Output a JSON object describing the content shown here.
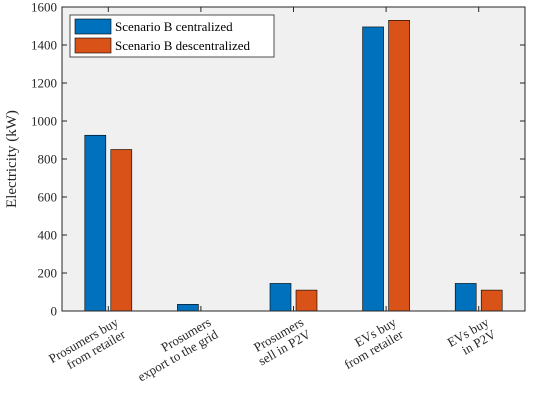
{
  "chart_data": {
    "type": "bar",
    "title": "",
    "xlabel": "",
    "ylabel": "Electricity (kW)",
    "ylim": [
      0,
      1600
    ],
    "yticks": [
      0,
      200,
      400,
      600,
      800,
      1000,
      1200,
      1400,
      1600
    ],
    "grid": false,
    "legend_position": "top-left",
    "categories": [
      [
        "Prosumers buy",
        "from retailer"
      ],
      [
        "Prosumers",
        "export to the grid"
      ],
      [
        "Prosumers",
        "sell in P2V"
      ],
      [
        "EVs buy",
        "from retailer"
      ],
      [
        "EVs buy",
        "in P2V"
      ]
    ],
    "series": [
      {
        "name": "Scenario B centralized",
        "color": "#0072BD",
        "values": [
          925,
          35,
          145,
          1495,
          145
        ]
      },
      {
        "name": "Scenario B descentralized",
        "color": "#D95319",
        "values": [
          850,
          0,
          110,
          1530,
          110
        ]
      }
    ],
    "background_color": "#F0F0F0",
    "axis_color": "#262626"
  }
}
